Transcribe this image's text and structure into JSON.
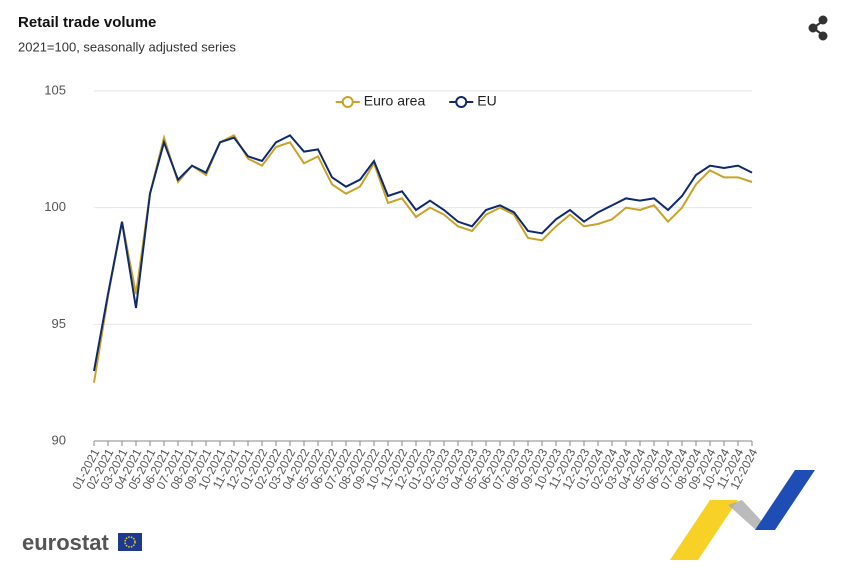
{
  "chart_data": {
    "type": "line",
    "title": "Retail trade volume",
    "subtitle": "2021=100, seasonally adjusted series",
    "categories": [
      "01-2021",
      "02-2021",
      "03-2021",
      "04-2021",
      "05-2021",
      "06-2021",
      "07-2021",
      "08-2021",
      "09-2021",
      "10-2021",
      "11-2021",
      "12-2021",
      "01-2022",
      "02-2022",
      "03-2022",
      "04-2022",
      "05-2022",
      "06-2022",
      "07-2022",
      "08-2022",
      "09-2022",
      "10-2022",
      "11-2022",
      "12-2022",
      "01-2023",
      "02-2023",
      "03-2023",
      "04-2023",
      "05-2023",
      "06-2023",
      "07-2023",
      "08-2023",
      "09-2023",
      "10-2023",
      "11-2023",
      "12-2023",
      "01-2024",
      "02-2024",
      "03-2024",
      "04-2024",
      "05-2024",
      "06-2024",
      "07-2024",
      "08-2024",
      "09-2024",
      "10-2024",
      "11-2024",
      "12-2024"
    ],
    "series": [
      {
        "name": "Euro area",
        "color": "#c9a227",
        "values": [
          92.5,
          96.2,
          99.4,
          96.3,
          100.6,
          103.0,
          101.1,
          101.8,
          101.4,
          102.8,
          103.1,
          102.1,
          101.8,
          102.6,
          102.8,
          101.9,
          102.2,
          101.0,
          100.6,
          100.9,
          101.9,
          100.2,
          100.4,
          99.6,
          100.0,
          99.7,
          99.2,
          99.0,
          99.7,
          100.0,
          99.7,
          98.7,
          98.6,
          99.2,
          99.7,
          99.2,
          99.3,
          99.5,
          100.0,
          99.9,
          100.1,
          99.4,
          100.0,
          101.0,
          101.6,
          101.3,
          101.3,
          101.1
        ]
      },
      {
        "name": "EU",
        "color": "#0e2a6d",
        "values": [
          93.0,
          96.3,
          99.4,
          95.7,
          100.6,
          102.8,
          101.2,
          101.8,
          101.5,
          102.8,
          103.0,
          102.2,
          102.0,
          102.8,
          103.1,
          102.4,
          102.5,
          101.3,
          100.9,
          101.2,
          102.0,
          100.5,
          100.7,
          99.9,
          100.3,
          99.9,
          99.4,
          99.2,
          99.9,
          100.1,
          99.8,
          99.0,
          98.9,
          99.5,
          99.9,
          99.4,
          99.8,
          100.1,
          100.4,
          100.3,
          100.4,
          99.9,
          100.5,
          101.4,
          101.8,
          101.7,
          101.8,
          101.5
        ]
      }
    ],
    "ylim": [
      90,
      105
    ],
    "yticks": [
      90,
      95,
      100,
      105
    ],
    "grid": true,
    "legend": "top"
  },
  "footer": {
    "logo": "eurostat"
  }
}
